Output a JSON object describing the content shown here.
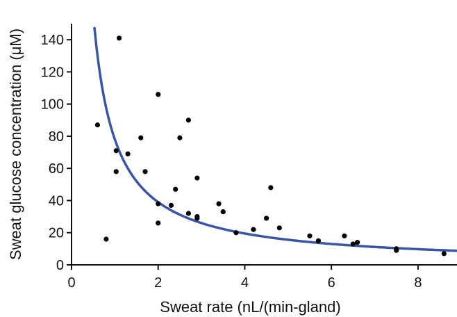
{
  "chart_data": {
    "type": "scatter",
    "title": "",
    "xlabel": "Sweat rate (nL/(min-gland)",
    "ylabel": "Sweat glucose concentration (μM)",
    "xlim": [
      0,
      8.9
    ],
    "ylim": [
      0,
      150
    ],
    "x_ticks": [
      0,
      2,
      4,
      6,
      8
    ],
    "y_ticks": [
      0,
      20,
      40,
      60,
      80,
      100,
      120,
      140
    ],
    "x_tick_labels": [
      "0",
      "2",
      "4",
      "6",
      "8"
    ],
    "y_tick_labels": [
      "0",
      "20",
      "40",
      "60",
      "80",
      "100",
      "120",
      "140"
    ],
    "grid": false,
    "legend": "none",
    "series": [
      {
        "kind": "points",
        "color": "#000000",
        "points": [
          [
            0.6,
            87
          ],
          [
            0.8,
            16
          ],
          [
            1.1,
            141
          ],
          [
            1.03,
            71
          ],
          [
            1.03,
            58
          ],
          [
            1.3,
            69
          ],
          [
            1.6,
            79
          ],
          [
            1.7,
            58
          ],
          [
            2.0,
            106
          ],
          [
            2.0,
            38
          ],
          [
            2.0,
            26
          ],
          [
            2.3,
            37
          ],
          [
            2.4,
            47
          ],
          [
            2.5,
            79
          ],
          [
            2.7,
            90
          ],
          [
            2.7,
            32
          ],
          [
            2.9,
            54
          ],
          [
            2.9,
            30
          ],
          [
            2.9,
            29
          ],
          [
            3.4,
            38
          ],
          [
            3.5,
            33
          ],
          [
            3.8,
            20
          ],
          [
            4.2,
            22
          ],
          [
            4.5,
            29
          ],
          [
            4.6,
            48
          ],
          [
            4.8,
            23
          ],
          [
            5.5,
            18
          ],
          [
            5.7,
            15
          ],
          [
            6.3,
            18
          ],
          [
            6.5,
            13
          ],
          [
            6.6,
            14
          ],
          [
            7.5,
            10
          ],
          [
            7.5,
            9
          ],
          [
            8.6,
            7
          ]
        ]
      },
      {
        "kind": "curve",
        "color": "#3a55a6",
        "equation": "y = 78 / x",
        "x_start": 0.53,
        "x_end": 8.9
      }
    ]
  }
}
